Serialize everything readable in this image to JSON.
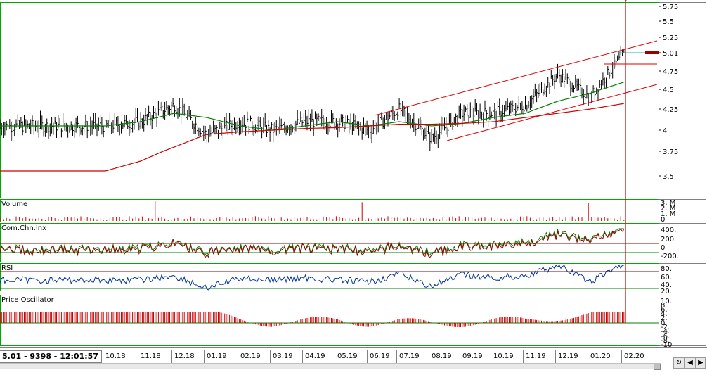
{
  "status": {
    "text": "5.01 - 9398 - 12:01:57"
  },
  "x_axis": {
    "labels": [
      "10.18",
      "11.18",
      "12.18",
      "01.19",
      "02.19",
      "03.19",
      "04.19",
      "05.19",
      "06.19",
      "07.19",
      "08.19",
      "09.19",
      "10.19",
      "11.19",
      "12.19",
      "01.20",
      "02.20"
    ]
  },
  "panes": {
    "price": {
      "ticks": [
        "5.75",
        "5.5",
        "5.25",
        "5.01",
        "4.75",
        "4.5",
        "4.25",
        "4",
        "3.75",
        "3.5"
      ],
      "last_value": "5.01"
    },
    "volume": {
      "title": "Volume",
      "ticks": [
        "3. M",
        "2. M",
        "1. M",
        "0"
      ]
    },
    "cci": {
      "title": "Com.Chn.Inx",
      "ticks": [
        "400.",
        "200.",
        "0",
        "-200."
      ]
    },
    "rsi": {
      "title": "RSI",
      "ticks": [
        "80.",
        "60.",
        "40.",
        "20."
      ]
    },
    "po": {
      "title": "Price Oscillator",
      "ticks": [
        "10.",
        "8.",
        "6.",
        "4.",
        "2.",
        "0",
        "-2.",
        "-4.",
        "-6.",
        "-8.",
        "-10"
      ]
    }
  },
  "colors": {
    "price_bar": "#000000",
    "ma_short": "#008000",
    "ma_long": "#cc0000",
    "channel": "#dd0000",
    "resistance": "#00c0c0",
    "volume": "#cc0000",
    "rsi": "#003399",
    "pane_border": "#00aa00",
    "po_bar": "#cc0000"
  },
  "nav": {
    "refresh_icon": "refresh-icon",
    "prev_icon": "arrow-left-icon",
    "next_icon": "arrow-right-icon"
  },
  "chart_data": {
    "type": "line",
    "x": [
      "10.18",
      "11.18",
      "12.18",
      "01.19",
      "02.19",
      "03.19",
      "04.19",
      "05.19",
      "06.19",
      "07.19",
      "08.19",
      "09.19",
      "10.19",
      "11.19",
      "12.19",
      "01.20",
      "02.20"
    ],
    "series": [
      {
        "values": [
          4.05,
          4.1,
          4.3,
          3.95,
          4.1,
          4.0,
          4.1,
          4.1,
          4.0,
          4.25,
          3.9,
          4.2,
          4.2,
          4.3,
          4.7,
          4.4,
          5.0
        ]
      },
      {
        "values": [
          4.05,
          4.1,
          4.2,
          4.15,
          4.05,
          4.0,
          4.05,
          4.1,
          4.05,
          4.1,
          4.05,
          4.08,
          4.15,
          4.2,
          4.35,
          4.45,
          4.6
        ]
      },
      {
        "values": [
          3.55,
          3.65,
          3.8,
          3.95,
          3.98,
          4.0,
          4.02,
          4.03,
          4.05,
          4.07,
          4.07,
          4.08,
          4.1,
          4.15,
          4.2,
          4.25,
          4.32
        ]
      }
    ],
    "ylim": [
      3.3,
      5.8
    ]
  }
}
